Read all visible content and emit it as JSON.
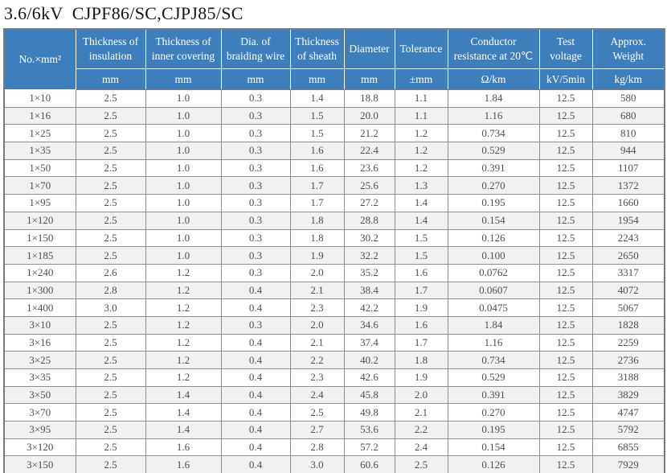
{
  "title": "3.6/6kV  CJPF86/SC,CJPJ85/SC",
  "colors": {
    "header_bg": "#3d7ebd",
    "header_text": "#ffffff",
    "row_alt_bg": "#f1f1f1",
    "grid_line": "#8e8e8e",
    "outer_border": "#7a7a7a"
  },
  "table": {
    "columns": [
      {
        "label": "No.×mm²",
        "unit": ""
      },
      {
        "label": "Thickness of insulation",
        "unit": "mm"
      },
      {
        "label": "Thickness of inner covering",
        "unit": "mm"
      },
      {
        "label": "Dia. of braiding wire",
        "unit": "mm"
      },
      {
        "label": "Thickness of sheath",
        "unit": "mm"
      },
      {
        "label": "Diameter",
        "unit": "mm"
      },
      {
        "label": "Tolerance",
        "unit": "±mm"
      },
      {
        "label": "Conductor resistance at 20℃",
        "unit": "Ω/km"
      },
      {
        "label": "Test voltage",
        "unit": "kV/5min"
      },
      {
        "label": "Approx. Weight",
        "unit": "kg/km"
      }
    ],
    "rows": [
      [
        "1×10",
        "2.5",
        "1.0",
        "0.3",
        "1.4",
        "18.8",
        "1.1",
        "1.84",
        "12.5",
        "580"
      ],
      [
        "1×16",
        "2.5",
        "1.0",
        "0.3",
        "1.5",
        "20.0",
        "1.1",
        "1.16",
        "12.5",
        "680"
      ],
      [
        "1×25",
        "2.5",
        "1.0",
        "0.3",
        "1.5",
        "21.2",
        "1.2",
        "0.734",
        "12.5",
        "810"
      ],
      [
        "1×35",
        "2.5",
        "1.0",
        "0.3",
        "1.6",
        "22.4",
        "1.2",
        "0.529",
        "12.5",
        "944"
      ],
      [
        "1×50",
        "2.5",
        "1.0",
        "0.3",
        "1.6",
        "23.6",
        "1.2",
        "0.391",
        "12.5",
        "1107"
      ],
      [
        "1×70",
        "2.5",
        "1.0",
        "0.3",
        "1.7",
        "25.6",
        "1.3",
        "0.270",
        "12.5",
        "1372"
      ],
      [
        "1×95",
        "2.5",
        "1.0",
        "0.3",
        "1.7",
        "27.2",
        "1.4",
        "0.195",
        "12.5",
        "1660"
      ],
      [
        "1×120",
        "2.5",
        "1.0",
        "0.3",
        "1.8",
        "28.8",
        "1.4",
        "0.154",
        "12.5",
        "1954"
      ],
      [
        "1×150",
        "2.5",
        "1.0",
        "0.3",
        "1.8",
        "30.2",
        "1.5",
        "0.126",
        "12.5",
        "2243"
      ],
      [
        "1×185",
        "2.5",
        "1.0",
        "0.3",
        "1.9",
        "32.2",
        "1.5",
        "0.100",
        "12.5",
        "2650"
      ],
      [
        "1×240",
        "2.6",
        "1.2",
        "0.3",
        "2.0",
        "35.2",
        "1.6",
        "0.0762",
        "12.5",
        "3317"
      ],
      [
        "1×300",
        "2.8",
        "1.2",
        "0.4",
        "2.1",
        "38.4",
        "1.7",
        "0.0607",
        "12.5",
        "4072"
      ],
      [
        "1×400",
        "3.0",
        "1.2",
        "0.4",
        "2.3",
        "42.2",
        "1.9",
        "0.0475",
        "12.5",
        "5067"
      ],
      [
        "3×10",
        "2.5",
        "1.2",
        "0.3",
        "2.0",
        "34.6",
        "1.6",
        "1.84",
        "12.5",
        "1828"
      ],
      [
        "3×16",
        "2.5",
        "1.2",
        "0.4",
        "2.1",
        "37.4",
        "1.7",
        "1.16",
        "12.5",
        "2259"
      ],
      [
        "3×25",
        "2.5",
        "1.2",
        "0.4",
        "2.2",
        "40.2",
        "1.8",
        "0.734",
        "12.5",
        "2736"
      ],
      [
        "3×35",
        "2.5",
        "1.2",
        "0.4",
        "2.3",
        "42.6",
        "1.9",
        "0.529",
        "12.5",
        "3188"
      ],
      [
        "3×50",
        "2.5",
        "1.4",
        "0.4",
        "2.4",
        "45.8",
        "2.0",
        "0.391",
        "12.5",
        "3829"
      ],
      [
        "3×70",
        "2.5",
        "1.4",
        "0.4",
        "2.5",
        "49.8",
        "2.1",
        "0.270",
        "12.5",
        "4747"
      ],
      [
        "3×95",
        "2.5",
        "1.4",
        "0.4",
        "2.7",
        "53.6",
        "2.2",
        "0.195",
        "12.5",
        "5792"
      ],
      [
        "3×120",
        "2.5",
        "1.6",
        "0.4",
        "2.8",
        "57.2",
        "2.4",
        "0.154",
        "12.5",
        "6855"
      ],
      [
        "3×150",
        "2.5",
        "1.6",
        "0.4",
        "3.0",
        "60.6",
        "2.5",
        "0.126",
        "12.5",
        "7929"
      ]
    ]
  }
}
